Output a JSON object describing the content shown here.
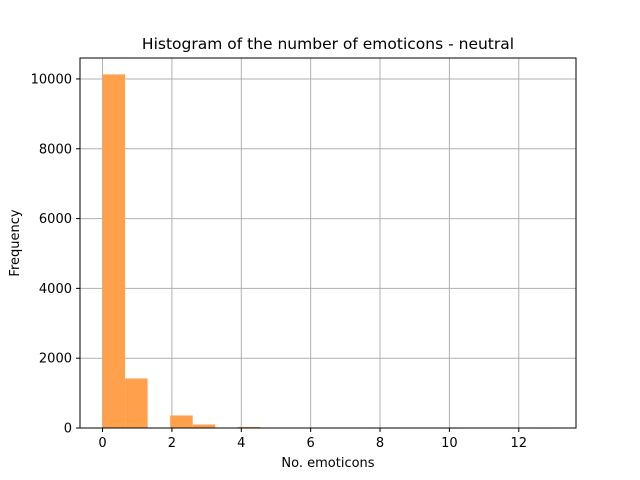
{
  "chart_data": {
    "type": "bar",
    "title": "Histogram of the number of emoticons - neutral",
    "xlabel": "No. emoticons",
    "ylabel": "Frequency",
    "xlim": [
      -0.65,
      13.65
    ],
    "ylim": [
      0,
      10600
    ],
    "xticks": [
      0,
      2,
      4,
      6,
      8,
      10,
      12
    ],
    "yticks": [
      0,
      2000,
      4000,
      6000,
      8000,
      10000
    ],
    "grid": true,
    "bar_color": "#ffa04d",
    "bins": [
      {
        "x0": 0.0,
        "x1": 0.65,
        "count": 10130
      },
      {
        "x0": 0.65,
        "x1": 1.3,
        "count": 1420
      },
      {
        "x0": 1.3,
        "x1": 1.95,
        "count": 0
      },
      {
        "x0": 1.95,
        "x1": 2.6,
        "count": 360
      },
      {
        "x0": 2.6,
        "x1": 3.25,
        "count": 100
      },
      {
        "x0": 3.25,
        "x1": 3.9,
        "count": 0
      },
      {
        "x0": 3.9,
        "x1": 4.55,
        "count": 30
      },
      {
        "x0": 4.55,
        "x1": 5.2,
        "count": 0
      },
      {
        "x0": 5.2,
        "x1": 5.85,
        "count": 0
      },
      {
        "x0": 5.85,
        "x1": 6.5,
        "count": 5
      },
      {
        "x0": 6.5,
        "x1": 7.15,
        "count": 0
      },
      {
        "x0": 7.15,
        "x1": 7.8,
        "count": 0
      },
      {
        "x0": 7.8,
        "x1": 8.45,
        "count": 2
      },
      {
        "x0": 8.45,
        "x1": 9.1,
        "count": 0
      },
      {
        "x0": 9.1,
        "x1": 9.75,
        "count": 0
      },
      {
        "x0": 9.75,
        "x1": 10.4,
        "count": 1
      },
      {
        "x0": 10.4,
        "x1": 11.05,
        "count": 0
      },
      {
        "x0": 11.05,
        "x1": 11.7,
        "count": 0
      },
      {
        "x0": 11.7,
        "x1": 12.35,
        "count": 0
      },
      {
        "x0": 12.35,
        "x1": 13.0,
        "count": 1
      }
    ]
  }
}
